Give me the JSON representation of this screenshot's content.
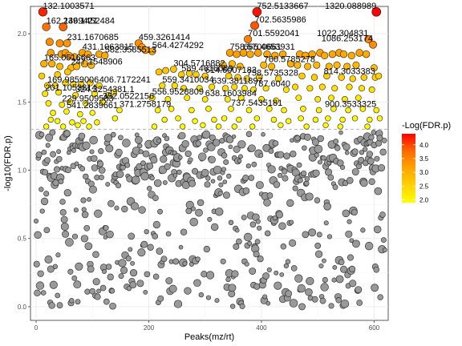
{
  "chart_data": {
    "type": "scatter",
    "title": "",
    "xlabel": "Peaks(mz/rt)",
    "ylabel": "-log10(FDR.p)",
    "xlim": [
      -10,
      625
    ],
    "ylim": [
      -0.1,
      2.2
    ],
    "x_ticks": [
      0,
      200,
      400,
      600
    ],
    "x_tick_labels": [
      "0",
      "200",
      "400",
      "600"
    ],
    "y_ticks": [
      0.0,
      0.5,
      1.0,
      1.5,
      2.0
    ],
    "y_tick_labels": [
      "0.0",
      "0.5",
      "1.0",
      "1.5",
      "2.0"
    ],
    "threshold_y": 1.3,
    "grid": true,
    "legend": {
      "title": "-Log(FDR.p)",
      "placement": "right",
      "min": 1.9,
      "max": 4.4,
      "ticks": [
        2.0,
        2.5,
        3.0,
        3.5,
        4.0
      ],
      "tick_labels": [
        "2.0",
        "2.5",
        "3.0",
        "3.5",
        "4.0"
      ],
      "colors": [
        "#FFFF00",
        "#FFD200",
        "#FFA500",
        "#FF6A00",
        "#FF0000"
      ]
    },
    "nonsig_color": "#999999",
    "significant": [
      {
        "x": 12,
        "y": 2.16,
        "c": 4.2
      },
      {
        "x": 48,
        "y": 2.05,
        "c": 3.8
      },
      {
        "x": 18,
        "y": 2.05,
        "c": 3.7
      },
      {
        "x": 24,
        "y": 1.94,
        "c": 3.4
      },
      {
        "x": 42,
        "y": 1.93,
        "c": 3.4
      },
      {
        "x": 55,
        "y": 1.93,
        "c": 3.3
      },
      {
        "x": 26,
        "y": 1.86,
        "c": 3.2
      },
      {
        "x": 45,
        "y": 1.85,
        "c": 3.2
      },
      {
        "x": 52,
        "y": 1.86,
        "c": 3.2
      },
      {
        "x": 58,
        "y": 1.84,
        "c": 3.2
      },
      {
        "x": 68,
        "y": 1.83,
        "c": 3.1
      },
      {
        "x": 82,
        "y": 1.86,
        "c": 3.2
      },
      {
        "x": 92,
        "y": 1.85,
        "c": 3.1
      },
      {
        "x": 112,
        "y": 1.85,
        "c": 3.1
      },
      {
        "x": 122,
        "y": 1.84,
        "c": 3.1
      },
      {
        "x": 14,
        "y": 1.78,
        "c": 3.0
      },
      {
        "x": 28,
        "y": 1.78,
        "c": 3.0
      },
      {
        "x": 42,
        "y": 1.76,
        "c": 2.9
      },
      {
        "x": 62,
        "y": 1.75,
        "c": 2.9
      },
      {
        "x": 72,
        "y": 1.76,
        "c": 2.9
      },
      {
        "x": 86,
        "y": 1.78,
        "c": 3.0
      },
      {
        "x": 98,
        "y": 1.77,
        "c": 2.9
      },
      {
        "x": 10,
        "y": 1.69,
        "c": 2.6
      },
      {
        "x": 38,
        "y": 1.7,
        "c": 2.6
      },
      {
        "x": 56,
        "y": 1.72,
        "c": 2.7
      },
      {
        "x": 20,
        "y": 1.62,
        "c": 2.4
      },
      {
        "x": 34,
        "y": 1.62,
        "c": 2.4
      },
      {
        "x": 52,
        "y": 1.64,
        "c": 2.5
      },
      {
        "x": 66,
        "y": 1.63,
        "c": 2.4
      },
      {
        "x": 80,
        "y": 1.63,
        "c": 2.4
      },
      {
        "x": 96,
        "y": 1.64,
        "c": 2.5
      },
      {
        "x": 112,
        "y": 1.62,
        "c": 2.4
      },
      {
        "x": 16,
        "y": 1.56,
        "c": 2.3
      },
      {
        "x": 40,
        "y": 1.57,
        "c": 2.3
      },
      {
        "x": 70,
        "y": 1.55,
        "c": 2.3
      },
      {
        "x": 104,
        "y": 1.56,
        "c": 2.3
      },
      {
        "x": 128,
        "y": 1.55,
        "c": 2.2
      },
      {
        "x": 138,
        "y": 1.57,
        "c": 2.3
      },
      {
        "x": 22,
        "y": 1.49,
        "c": 2.2
      },
      {
        "x": 46,
        "y": 1.48,
        "c": 2.2
      },
      {
        "x": 60,
        "y": 1.5,
        "c": 2.2
      },
      {
        "x": 88,
        "y": 1.49,
        "c": 2.1
      },
      {
        "x": 118,
        "y": 1.5,
        "c": 2.2
      },
      {
        "x": 30,
        "y": 1.42,
        "c": 2.1
      },
      {
        "x": 54,
        "y": 1.43,
        "c": 2.1
      },
      {
        "x": 78,
        "y": 1.41,
        "c": 2.1
      },
      {
        "x": 100,
        "y": 1.42,
        "c": 2.0
      },
      {
        "x": 26,
        "y": 1.37,
        "c": 2.0
      },
      {
        "x": 38,
        "y": 1.36,
        "c": 2.0
      },
      {
        "x": 64,
        "y": 1.35,
        "c": 2.0
      },
      {
        "x": 84,
        "y": 1.36,
        "c": 2.0
      },
      {
        "x": 108,
        "y": 1.35,
        "c": 2.0
      },
      {
        "x": 18,
        "y": 1.32,
        "c": 1.95
      },
      {
        "x": 48,
        "y": 1.32,
        "c": 1.95
      },
      {
        "x": 74,
        "y": 1.33,
        "c": 1.95
      },
      {
        "x": 94,
        "y": 1.32,
        "c": 1.95
      },
      {
        "x": 140,
        "y": 1.38,
        "c": 2.0
      },
      {
        "x": 148,
        "y": 1.44,
        "c": 2.1
      },
      {
        "x": 182,
        "y": 1.93,
        "c": 3.4
      },
      {
        "x": 188,
        "y": 1.9,
        "c": 3.3
      },
      {
        "x": 194,
        "y": 1.88,
        "c": 3.2
      },
      {
        "x": 206,
        "y": 1.87,
        "c": 3.1
      },
      {
        "x": 218,
        "y": 1.72,
        "c": 2.7
      },
      {
        "x": 230,
        "y": 1.73,
        "c": 2.7
      },
      {
        "x": 244,
        "y": 1.74,
        "c": 2.7
      },
      {
        "x": 258,
        "y": 1.7,
        "c": 2.6
      },
      {
        "x": 272,
        "y": 1.71,
        "c": 2.6
      },
      {
        "x": 284,
        "y": 1.7,
        "c": 2.6
      },
      {
        "x": 300,
        "y": 1.69,
        "c": 2.6
      },
      {
        "x": 224,
        "y": 1.62,
        "c": 2.4
      },
      {
        "x": 246,
        "y": 1.62,
        "c": 2.4
      },
      {
        "x": 262,
        "y": 1.6,
        "c": 2.4
      },
      {
        "x": 290,
        "y": 1.6,
        "c": 2.3
      },
      {
        "x": 312,
        "y": 1.61,
        "c": 2.4
      },
      {
        "x": 206,
        "y": 1.53,
        "c": 2.3
      },
      {
        "x": 234,
        "y": 1.52,
        "c": 2.2
      },
      {
        "x": 268,
        "y": 1.53,
        "c": 2.2
      },
      {
        "x": 300,
        "y": 1.52,
        "c": 2.2
      },
      {
        "x": 216,
        "y": 1.44,
        "c": 2.1
      },
      {
        "x": 240,
        "y": 1.45,
        "c": 2.1
      },
      {
        "x": 276,
        "y": 1.44,
        "c": 2.1
      },
      {
        "x": 306,
        "y": 1.45,
        "c": 2.1
      },
      {
        "x": 228,
        "y": 1.37,
        "c": 2.0
      },
      {
        "x": 252,
        "y": 1.38,
        "c": 2.0
      },
      {
        "x": 282,
        "y": 1.36,
        "c": 2.0
      },
      {
        "x": 316,
        "y": 1.37,
        "c": 2.0
      },
      {
        "x": 210,
        "y": 1.32,
        "c": 1.95
      },
      {
        "x": 260,
        "y": 1.32,
        "c": 1.95
      },
      {
        "x": 296,
        "y": 1.33,
        "c": 1.95
      },
      {
        "x": 324,
        "y": 1.32,
        "c": 1.95
      },
      {
        "x": 392,
        "y": 2.16,
        "c": 4.3
      },
      {
        "x": 388,
        "y": 2.06,
        "c": 3.9
      },
      {
        "x": 376,
        "y": 1.96,
        "c": 3.5
      },
      {
        "x": 344,
        "y": 1.86,
        "c": 3.2
      },
      {
        "x": 356,
        "y": 1.85,
        "c": 3.2
      },
      {
        "x": 368,
        "y": 1.86,
        "c": 3.2
      },
      {
        "x": 380,
        "y": 1.85,
        "c": 3.1
      },
      {
        "x": 394,
        "y": 1.86,
        "c": 3.2
      },
      {
        "x": 410,
        "y": 1.85,
        "c": 3.1
      },
      {
        "x": 424,
        "y": 1.84,
        "c": 3.1
      },
      {
        "x": 438,
        "y": 1.85,
        "c": 3.1
      },
      {
        "x": 452,
        "y": 1.78,
        "c": 3.0
      },
      {
        "x": 332,
        "y": 1.77,
        "c": 2.9
      },
      {
        "x": 348,
        "y": 1.78,
        "c": 2.9
      },
      {
        "x": 362,
        "y": 1.76,
        "c": 2.9
      },
      {
        "x": 404,
        "y": 1.77,
        "c": 2.9
      },
      {
        "x": 418,
        "y": 1.76,
        "c": 2.9
      },
      {
        "x": 342,
        "y": 1.69,
        "c": 2.6
      },
      {
        "x": 358,
        "y": 1.68,
        "c": 2.6
      },
      {
        "x": 374,
        "y": 1.67,
        "c": 2.5
      },
      {
        "x": 396,
        "y": 1.68,
        "c": 2.6
      },
      {
        "x": 430,
        "y": 1.67,
        "c": 2.5
      },
      {
        "x": 336,
        "y": 1.6,
        "c": 2.4
      },
      {
        "x": 352,
        "y": 1.61,
        "c": 2.4
      },
      {
        "x": 370,
        "y": 1.6,
        "c": 2.3
      },
      {
        "x": 386,
        "y": 1.59,
        "c": 2.3
      },
      {
        "x": 408,
        "y": 1.6,
        "c": 2.3
      },
      {
        "x": 444,
        "y": 1.59,
        "c": 2.3
      },
      {
        "x": 340,
        "y": 1.52,
        "c": 2.2
      },
      {
        "x": 364,
        "y": 1.53,
        "c": 2.2
      },
      {
        "x": 400,
        "y": 1.52,
        "c": 2.2
      },
      {
        "x": 426,
        "y": 1.51,
        "c": 2.2
      },
      {
        "x": 346,
        "y": 1.45,
        "c": 2.1
      },
      {
        "x": 378,
        "y": 1.44,
        "c": 2.1
      },
      {
        "x": 414,
        "y": 1.45,
        "c": 2.1
      },
      {
        "x": 440,
        "y": 1.44,
        "c": 2.1
      },
      {
        "x": 334,
        "y": 1.38,
        "c": 2.0
      },
      {
        "x": 360,
        "y": 1.37,
        "c": 2.0
      },
      {
        "x": 392,
        "y": 1.38,
        "c": 2.0
      },
      {
        "x": 422,
        "y": 1.37,
        "c": 2.0
      },
      {
        "x": 448,
        "y": 1.36,
        "c": 2.0
      },
      {
        "x": 352,
        "y": 1.32,
        "c": 1.95
      },
      {
        "x": 384,
        "y": 1.32,
        "c": 1.95
      },
      {
        "x": 434,
        "y": 1.33,
        "c": 1.95
      },
      {
        "x": 604,
        "y": 2.16,
        "c": 4.4
      },
      {
        "x": 590,
        "y": 1.96,
        "c": 3.5
      },
      {
        "x": 598,
        "y": 1.92,
        "c": 3.4
      },
      {
        "x": 468,
        "y": 1.85,
        "c": 3.1
      },
      {
        "x": 478,
        "y": 1.84,
        "c": 3.1
      },
      {
        "x": 490,
        "y": 1.85,
        "c": 3.1
      },
      {
        "x": 504,
        "y": 1.86,
        "c": 3.2
      },
      {
        "x": 512,
        "y": 1.84,
        "c": 3.1
      },
      {
        "x": 526,
        "y": 1.85,
        "c": 3.1
      },
      {
        "x": 538,
        "y": 1.86,
        "c": 3.2
      },
      {
        "x": 546,
        "y": 1.85,
        "c": 3.1
      },
      {
        "x": 560,
        "y": 1.84,
        "c": 3.1
      },
      {
        "x": 574,
        "y": 1.86,
        "c": 3.2
      },
      {
        "x": 586,
        "y": 1.85,
        "c": 3.1
      },
      {
        "x": 464,
        "y": 1.77,
        "c": 2.9
      },
      {
        "x": 482,
        "y": 1.76,
        "c": 2.9
      },
      {
        "x": 498,
        "y": 1.77,
        "c": 2.9
      },
      {
        "x": 520,
        "y": 1.76,
        "c": 2.9
      },
      {
        "x": 534,
        "y": 1.77,
        "c": 2.9
      },
      {
        "x": 552,
        "y": 1.76,
        "c": 2.9
      },
      {
        "x": 568,
        "y": 1.77,
        "c": 2.9
      },
      {
        "x": 600,
        "y": 1.75,
        "c": 2.8
      },
      {
        "x": 472,
        "y": 1.69,
        "c": 2.6
      },
      {
        "x": 494,
        "y": 1.68,
        "c": 2.6
      },
      {
        "x": 516,
        "y": 1.69,
        "c": 2.6
      },
      {
        "x": 542,
        "y": 1.68,
        "c": 2.6
      },
      {
        "x": 562,
        "y": 1.67,
        "c": 2.5
      },
      {
        "x": 582,
        "y": 1.68,
        "c": 2.6
      },
      {
        "x": 602,
        "y": 1.68,
        "c": 2.6
      },
      {
        "x": 608,
        "y": 1.69,
        "c": 2.6
      },
      {
        "x": 460,
        "y": 1.61,
        "c": 2.4
      },
      {
        "x": 486,
        "y": 1.6,
        "c": 2.4
      },
      {
        "x": 508,
        "y": 1.61,
        "c": 2.4
      },
      {
        "x": 530,
        "y": 1.6,
        "c": 2.3
      },
      {
        "x": 556,
        "y": 1.61,
        "c": 2.4
      },
      {
        "x": 578,
        "y": 1.6,
        "c": 2.3
      },
      {
        "x": 596,
        "y": 1.59,
        "c": 2.3
      },
      {
        "x": 466,
        "y": 1.53,
        "c": 2.2
      },
      {
        "x": 500,
        "y": 1.52,
        "c": 2.2
      },
      {
        "x": 524,
        "y": 1.53,
        "c": 2.2
      },
      {
        "x": 548,
        "y": 1.52,
        "c": 2.2
      },
      {
        "x": 572,
        "y": 1.53,
        "c": 2.2
      },
      {
        "x": 474,
        "y": 1.45,
        "c": 2.1
      },
      {
        "x": 502,
        "y": 1.44,
        "c": 2.1
      },
      {
        "x": 528,
        "y": 1.45,
        "c": 2.1
      },
      {
        "x": 554,
        "y": 1.44,
        "c": 2.1
      },
      {
        "x": 580,
        "y": 1.45,
        "c": 2.1
      },
      {
        "x": 604,
        "y": 1.44,
        "c": 2.1
      },
      {
        "x": 470,
        "y": 1.38,
        "c": 2.0
      },
      {
        "x": 496,
        "y": 1.37,
        "c": 2.0
      },
      {
        "x": 518,
        "y": 1.38,
        "c": 2.0
      },
      {
        "x": 544,
        "y": 1.37,
        "c": 2.0
      },
      {
        "x": 566,
        "y": 1.38,
        "c": 2.0
      },
      {
        "x": 592,
        "y": 1.37,
        "c": 2.0
      },
      {
        "x": 610,
        "y": 1.38,
        "c": 2.0
      },
      {
        "x": 480,
        "y": 1.32,
        "c": 1.95
      },
      {
        "x": 514,
        "y": 1.33,
        "c": 1.95
      },
      {
        "x": 540,
        "y": 1.32,
        "c": 1.95
      },
      {
        "x": 588,
        "y": 1.32,
        "c": 1.95
      }
    ],
    "labels": [
      {
        "text": "132.1003571",
        "x": 12,
        "y": 2.16
      },
      {
        "text": "239.1452484",
        "x": 48,
        "y": 2.05
      },
      {
        "text": "162.1469421",
        "x": 18,
        "y": 2.05
      },
      {
        "text": "231.1670685",
        "x": 55,
        "y": 1.93
      },
      {
        "text": "431.1063815",
        "x": 82,
        "y": 1.86
      },
      {
        "text": "165.0516663",
        "x": 14,
        "y": 1.78
      },
      {
        "text": "247.1548906",
        "x": 62,
        "y": 1.75
      },
      {
        "text": "169.9859006",
        "x": 20,
        "y": 1.62
      },
      {
        "text": "201.1053814",
        "x": 16,
        "y": 1.56
      },
      {
        "text": "324.3254381.1",
        "x": 70,
        "y": 1.55
      },
      {
        "text": "229.9509583",
        "x": 46,
        "y": 1.48
      },
      {
        "text": "541.2839661",
        "x": 54,
        "y": 1.43
      },
      {
        "text": "352.0522156",
        "x": 118,
        "y": 1.5
      },
      {
        "text": "459.3261414",
        "x": 182,
        "y": 1.93
      },
      {
        "text": "582.3585513",
        "x": 122,
        "y": 1.84
      },
      {
        "text": "406.7172241",
        "x": 112,
        "y": 1.62
      },
      {
        "text": "564.4274292",
        "x": 206,
        "y": 1.87
      },
      {
        "text": "589.4616089",
        "x": 258,
        "y": 1.7
      },
      {
        "text": "304.5716882",
        "x": 244,
        "y": 1.74
      },
      {
        "text": "371.2758179",
        "x": 148,
        "y": 1.44
      },
      {
        "text": "559.3410034",
        "x": 224,
        "y": 1.62
      },
      {
        "text": "556.9528809",
        "x": 206,
        "y": 1.53
      },
      {
        "text": "702.5635986",
        "x": 388,
        "y": 2.06
      },
      {
        "text": "752.5133667",
        "x": 392,
        "y": 2.16
      },
      {
        "text": "701.5592041",
        "x": 376,
        "y": 1.96
      },
      {
        "text": "665.4653931",
        "x": 368,
        "y": 1.86
      },
      {
        "text": "614.6007183",
        "x": 300,
        "y": 1.69
      },
      {
        "text": "758.5700661",
        "x": 344,
        "y": 1.86
      },
      {
        "text": "760.5785278",
        "x": 404,
        "y": 1.77
      },
      {
        "text": "758.5735328",
        "x": 374,
        "y": 1.67
      },
      {
        "text": "639.3811897",
        "x": 312,
        "y": 1.61
      },
      {
        "text": "787.6040",
        "x": 386,
        "y": 1.59
      },
      {
        "text": "638.1603984",
        "x": 300,
        "y": 1.52
      },
      {
        "text": "737.5435181",
        "x": 346,
        "y": 1.45
      },
      {
        "text": "1320.088989",
        "x": 604,
        "y": 2.16
      },
      {
        "text": "1022.304831",
        "x": 590,
        "y": 1.96
      },
      {
        "text": "1086.253174",
        "x": 598,
        "y": 1.92
      },
      {
        "text": "814.3033383",
        "x": 602,
        "y": 1.68
      },
      {
        "text": "900.3533325",
        "x": 604,
        "y": 1.44
      }
    ]
  }
}
